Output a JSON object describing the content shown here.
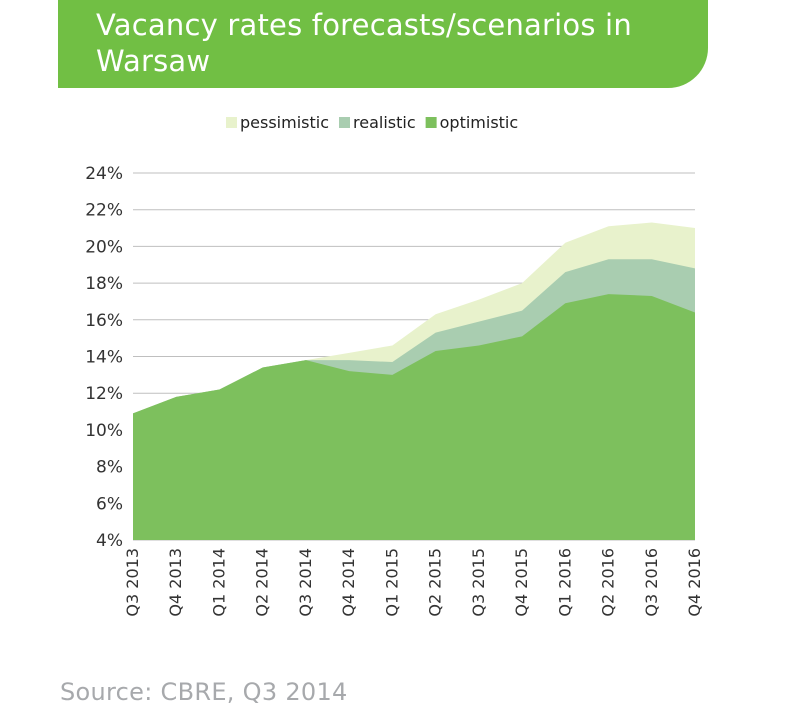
{
  "header": {
    "title": "Vacancy rates forecasts/scenarios in Warsaw"
  },
  "footer": {
    "source": "Source: CBRE, Q3 2014"
  },
  "colors": {
    "banner": "#71bf44",
    "pessimistic": "#e8f2cc",
    "realistic": "#a9cdb0",
    "optimistic": "#7dc05d",
    "grid": "#bfbfbf",
    "source_text": "#a7a9ac"
  },
  "chart_data": {
    "type": "area",
    "categories": [
      "Q3 2013",
      "Q4 2013",
      "Q1 2014",
      "Q2 2014",
      "Q3 2014",
      "Q4 2014",
      "Q1 2015",
      "Q2 2015",
      "Q3 2015",
      "Q4 2015",
      "Q1 2016",
      "Q2 2016",
      "Q3 2016",
      "Q4 2016"
    ],
    "series": [
      {
        "name": "pessimistic",
        "color": "#e8f2cc",
        "values": [
          10.9,
          11.8,
          12.2,
          13.4,
          13.8,
          14.2,
          14.6,
          16.3,
          17.1,
          18.0,
          20.2,
          21.1,
          21.3,
          21.0
        ]
      },
      {
        "name": "realistic",
        "color": "#a9cdb0",
        "values": [
          10.9,
          11.8,
          12.2,
          13.4,
          13.8,
          13.8,
          13.7,
          15.3,
          15.9,
          16.5,
          18.6,
          19.3,
          19.3,
          18.8
        ]
      },
      {
        "name": "optimistic",
        "color": "#7dc05d",
        "values": [
          10.9,
          11.8,
          12.2,
          13.4,
          13.8,
          13.2,
          13.0,
          14.3,
          14.6,
          15.1,
          16.9,
          17.4,
          17.3,
          16.4
        ]
      }
    ],
    "yticks": [
      "4%",
      "6%",
      "8%",
      "10%",
      "12%",
      "14%",
      "16%",
      "18%",
      "20%",
      "22%",
      "24%"
    ],
    "ylim": [
      4,
      24
    ],
    "grid": true,
    "legend_position": "top-center"
  }
}
